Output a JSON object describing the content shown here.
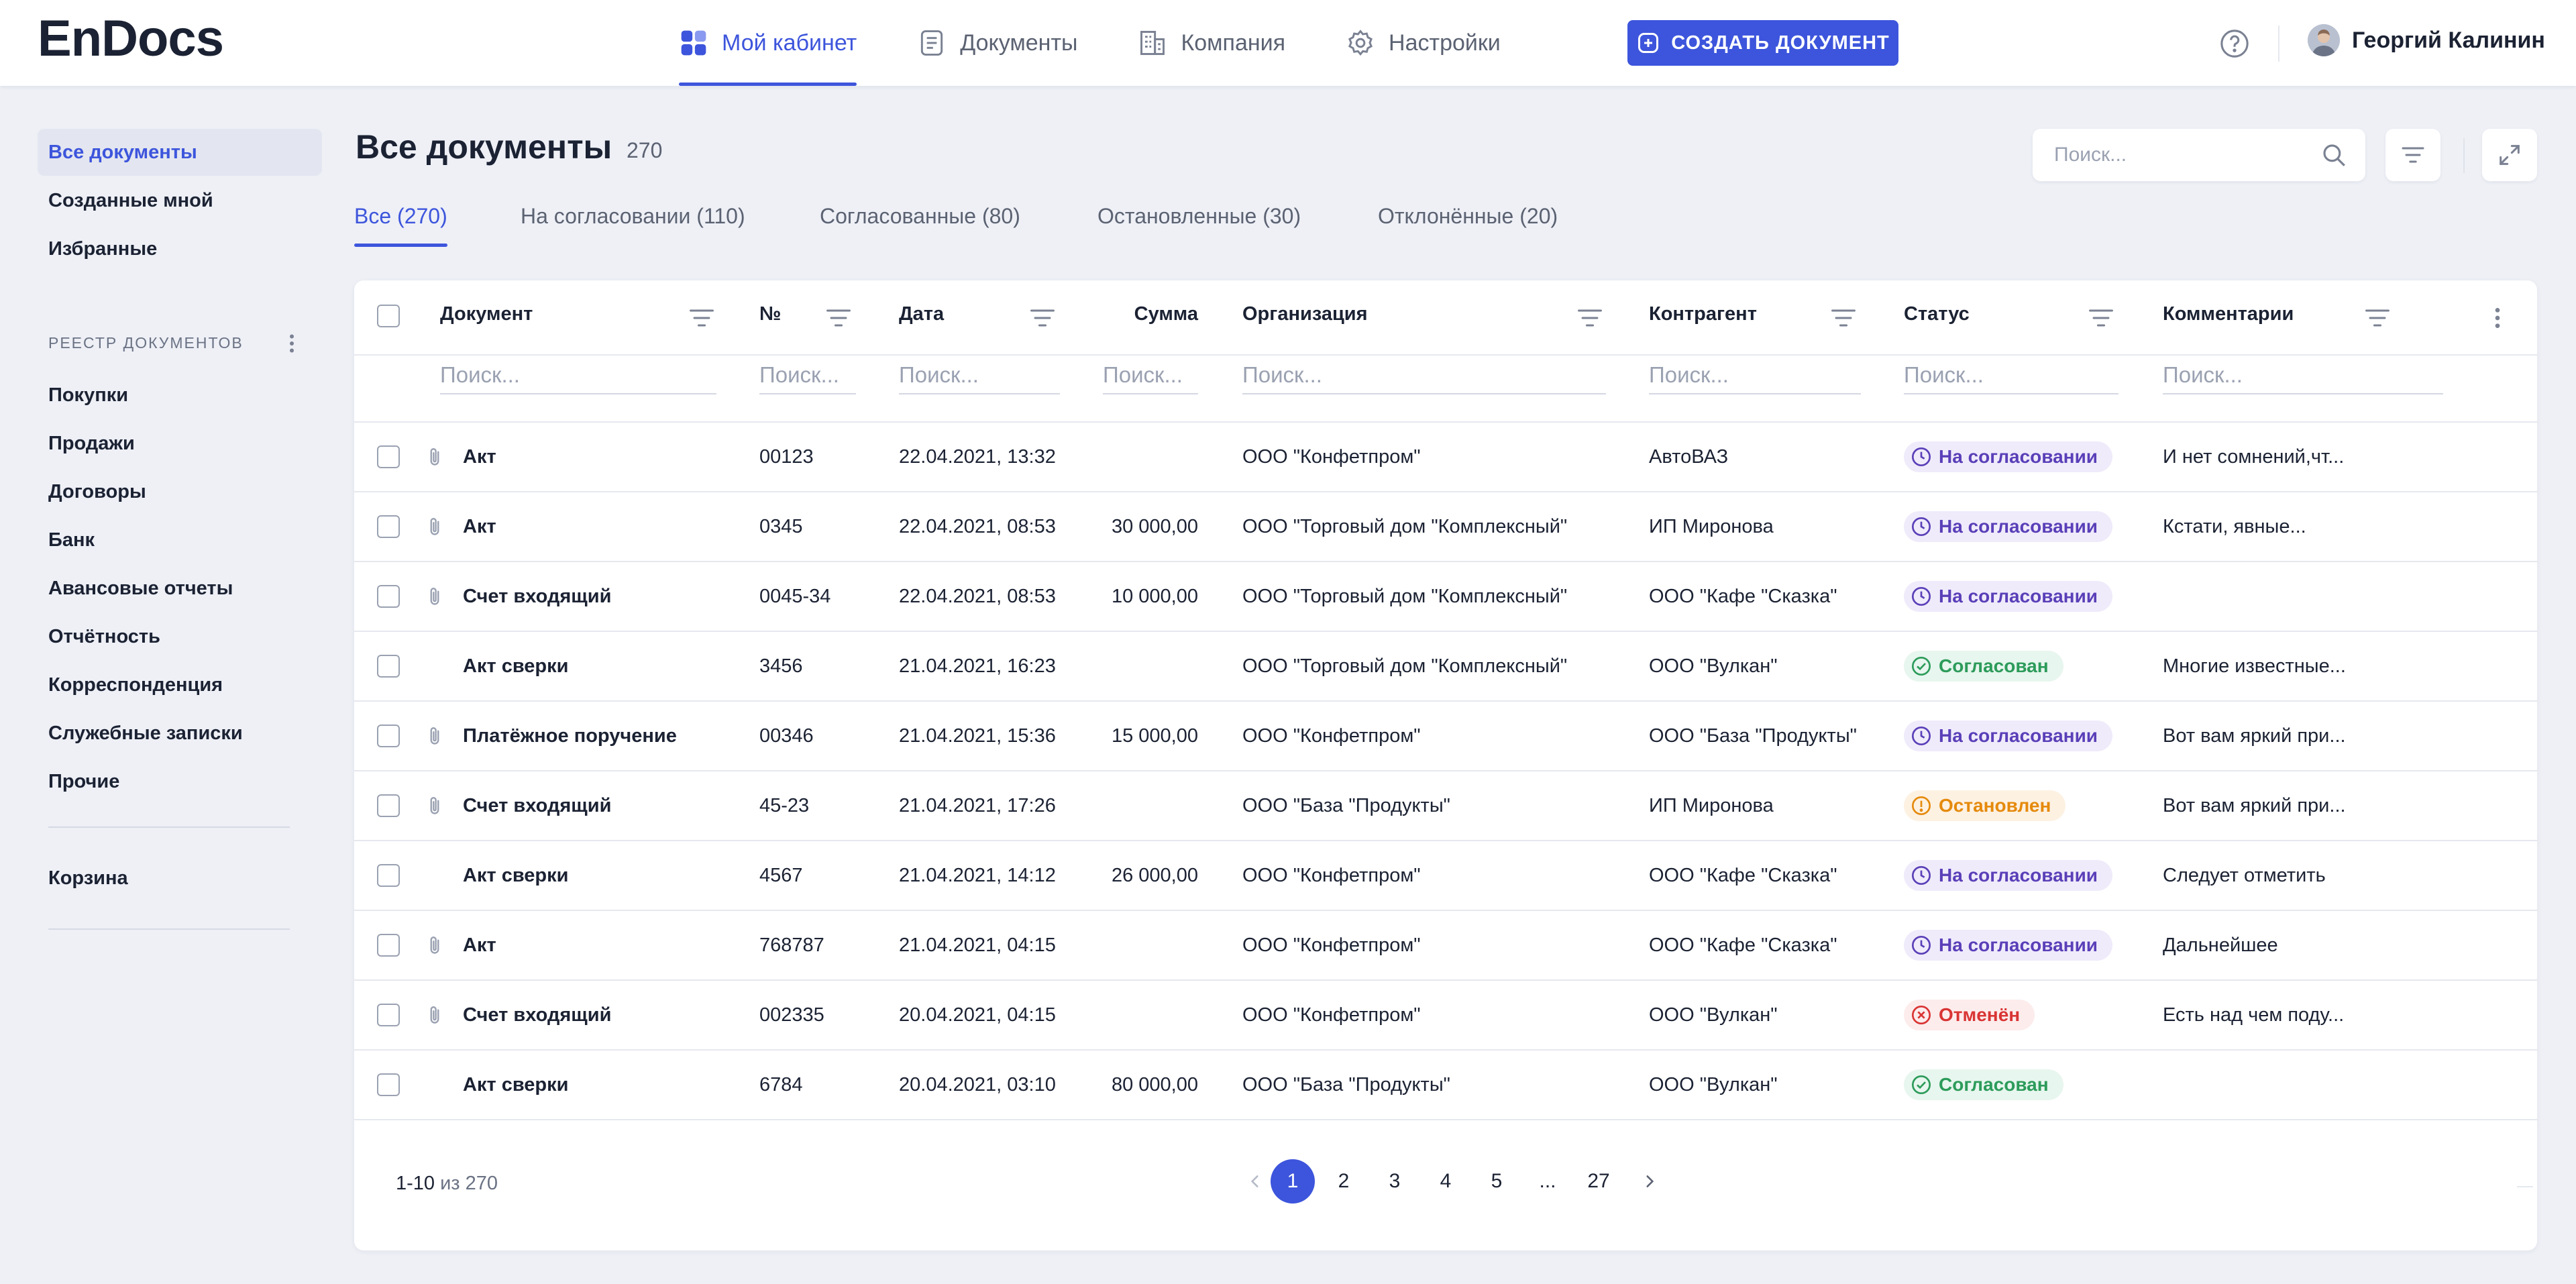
{
  "app": {
    "logo": "EnDocs"
  },
  "header": {
    "nav": [
      {
        "label": "Мой кабинет",
        "icon": "grid-icon",
        "active": true
      },
      {
        "label": "Документы",
        "icon": "document-icon",
        "active": false
      },
      {
        "label": "Компания",
        "icon": "building-icon",
        "active": false
      },
      {
        "label": "Настройки",
        "icon": "gear-icon",
        "active": false
      }
    ],
    "create_label": "СОЗДАТЬ ДОКУМЕНТ",
    "user_name": "Георгий Калинин"
  },
  "sidebar": {
    "top_items": [
      {
        "label": "Все документы",
        "active": true
      },
      {
        "label": "Созданные мной"
      },
      {
        "label": "Избранные"
      }
    ],
    "section_caption": "РЕЕСТР ДОКУМЕНТОВ",
    "registry_items": [
      {
        "label": "Покупки"
      },
      {
        "label": "Продажи"
      },
      {
        "label": "Договоры"
      },
      {
        "label": "Банк"
      },
      {
        "label": "Авансовые отчеты"
      },
      {
        "label": "Отчётность"
      },
      {
        "label": "Корреспонденция"
      },
      {
        "label": "Служебные записки"
      },
      {
        "label": "Прочие"
      }
    ],
    "trash_label": "Корзина"
  },
  "main": {
    "title": "Все документы",
    "title_count": "270",
    "search_placeholder": "Поиск...",
    "tabs": [
      {
        "label": "Все (270)",
        "active": true
      },
      {
        "label": "На согласовании (110)"
      },
      {
        "label": "Согласованные (80)"
      },
      {
        "label": "Остановленные (30)"
      },
      {
        "label": "Отклонённые (20)"
      }
    ]
  },
  "table": {
    "columns": [
      {
        "key": "doc",
        "label": "Документ"
      },
      {
        "key": "num",
        "label": "№"
      },
      {
        "key": "date",
        "label": "Дата"
      },
      {
        "key": "sum",
        "label": "Сумма"
      },
      {
        "key": "org",
        "label": "Организация"
      },
      {
        "key": "contr",
        "label": "Контрагент"
      },
      {
        "key": "status",
        "label": "Статус"
      },
      {
        "key": "comment",
        "label": "Комментарии"
      }
    ],
    "column_search_placeholder": "Поиск...",
    "status_styles": {
      "pending": {
        "bg": "#efebfb",
        "fg": "#5a3fb8",
        "icon": "clock-icon"
      },
      "ok": {
        "bg": "#e7f6ee",
        "fg": "#2c9b5a",
        "icon": "check-circle-icon"
      },
      "stop": {
        "bg": "#fdf1e2",
        "fg": "#e58a0c",
        "icon": "exclamation-circle-icon"
      },
      "cancel": {
        "bg": "#fdecec",
        "fg": "#d93434",
        "icon": "x-circle-icon"
      }
    },
    "rows": [
      {
        "doc": "Акт",
        "attach": true,
        "num": "00123",
        "date": "22.04.2021, 13:32",
        "sum": "",
        "org": "ООО \"Конфетпром\"",
        "contr": "АвтоВАЗ",
        "status": "На согласовании",
        "status_type": "pending",
        "comment": "И нет сомнений,чт..."
      },
      {
        "doc": "Акт",
        "attach": true,
        "num": "0345",
        "date": "22.04.2021, 08:53",
        "sum": "30 000,00",
        "org": "ООО \"Торговый дом \"Комплексный\"",
        "contr": "ИП Миронова",
        "status": "На согласовании",
        "status_type": "pending",
        "comment": "Кстати, явные..."
      },
      {
        "doc": "Счет входящий",
        "attach": true,
        "num": "0045-34",
        "date": "22.04.2021, 08:53",
        "sum": "10 000,00",
        "org": "ООО \"Торговый дом \"Комплексный\"",
        "contr": "ООО \"Кафе \"Сказка\"",
        "status": "На согласовании",
        "status_type": "pending",
        "comment": ""
      },
      {
        "doc": "Акт сверки",
        "attach": false,
        "num": "3456",
        "date": "21.04.2021, 16:23",
        "sum": "",
        "org": "ООО \"Торговый дом \"Комплексный\"",
        "contr": "ООО \"Вулкан\"",
        "status": "Согласован",
        "status_type": "ok",
        "comment": "Многие известные..."
      },
      {
        "doc": "Платёжное поручение",
        "attach": true,
        "num": "00346",
        "date": "21.04.2021, 15:36",
        "sum": "15 000,00",
        "org": "ООО \"Конфетпром\"",
        "contr": "ООО \"База \"Продукты\"",
        "status": "На согласовании",
        "status_type": "pending",
        "comment": "Вот вам яркий при..."
      },
      {
        "doc": "Счет входящий",
        "attach": true,
        "num": "45-23",
        "date": "21.04.2021, 17:26",
        "sum": "",
        "org": " ООО \"База \"Продукты\"",
        "contr": "ИП Миронова",
        "status": "Остановлен",
        "status_type": "stop",
        "comment": "Вот вам яркий при..."
      },
      {
        "doc": "Акт сверки",
        "attach": false,
        "num": "4567",
        "date": "21.04.2021, 14:12",
        "sum": "26 000,00",
        "org": "ООО \"Конфетпром\"",
        "contr": "ООО \"Кафе \"Сказка\"",
        "status": "На согласовании",
        "status_type": "pending",
        "comment": "Следует отметить"
      },
      {
        "doc": "Акт",
        "attach": true,
        "num": "768787",
        "date": "21.04.2021, 04:15",
        "sum": "",
        "org": "ООО \"Конфетпром\"",
        "contr": "ООО \"Кафе \"Сказка\"",
        "status": "На согласовании",
        "status_type": "pending",
        "comment": "Дальнейшее"
      },
      {
        "doc": "Счет входящий",
        "attach": true,
        "num": "002335",
        "date": "20.04.2021, 04:15",
        "sum": "",
        "org": "ООО \"Конфетпром\"",
        "contr": "ООО \"Вулкан\"",
        "status": "Отменён",
        "status_type": "cancel",
        "comment": "Есть над чем поду..."
      },
      {
        "doc": "Акт сверки",
        "attach": false,
        "num": "6784",
        "date": "20.04.2021, 03:10",
        "sum": "80 000,00",
        "org": " ООО \"База \"Продукты\"",
        "contr": "ООО \"Вулкан\"",
        "status": "Согласован",
        "status_type": "ok",
        "comment": ""
      }
    ]
  },
  "pagination": {
    "range": "1-10",
    "of_label": "из",
    "total": "270",
    "pages": [
      {
        "label": "1",
        "active": true
      },
      {
        "label": "2"
      },
      {
        "label": "3"
      },
      {
        "label": "4"
      },
      {
        "label": "5"
      },
      {
        "label": "..."
      },
      {
        "label": "27"
      }
    ]
  }
}
